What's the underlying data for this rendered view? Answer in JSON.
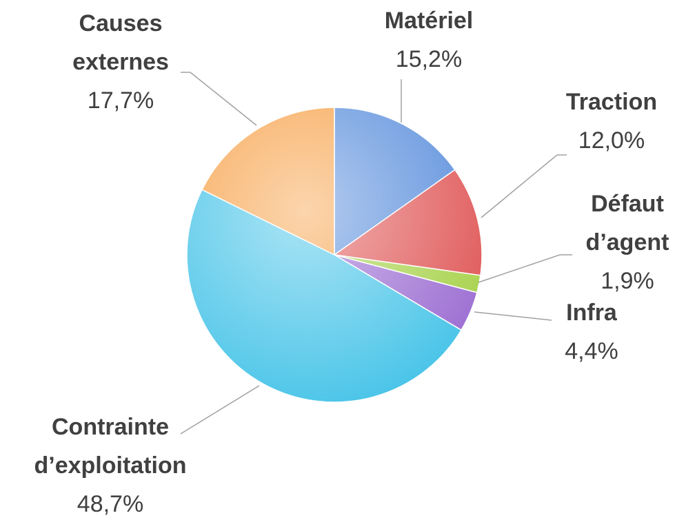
{
  "chart_data": {
    "type": "pie",
    "categories": [
      "Matériel",
      "Traction",
      "Défaut d’agent",
      "Infra",
      "Contrainte d’exploitation",
      "Causes externes"
    ],
    "values": [
      15.2,
      12.0,
      1.9,
      4.4,
      48.7,
      17.7
    ],
    "value_labels": [
      "15,2%",
      "12,0%",
      "1,9%",
      "4,4%",
      "48,7%",
      "17,7%"
    ],
    "colors": [
      "#5b8fdc",
      "#e05858",
      "#a8d24c",
      "#9c6ed2",
      "#48c4e8",
      "#f7a24a"
    ]
  }
}
